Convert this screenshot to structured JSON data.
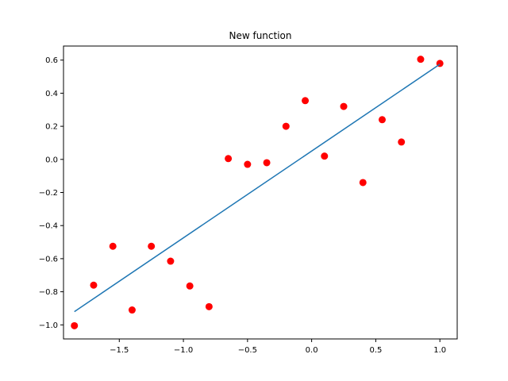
{
  "chart_data": {
    "type": "scatter",
    "title": "New function",
    "xlabel": "",
    "ylabel": "",
    "xlim": [
      -1.935,
      1.135
    ],
    "ylim": [
      -1.085,
      0.685
    ],
    "xticks": [
      -1.5,
      -1.0,
      -0.5,
      0.0,
      0.5,
      1.0
    ],
    "xtick_labels": [
      "−1.5",
      "−1.0",
      "−0.5",
      "0.0",
      "0.5",
      "1.0"
    ],
    "yticks": [
      -1.0,
      -0.8,
      -0.6,
      -0.4,
      -0.2,
      0.0,
      0.2,
      0.4,
      0.6
    ],
    "ytick_labels": [
      "−1.0",
      "−0.8",
      "−0.6",
      "−0.4",
      "−0.2",
      "0.0",
      "0.2",
      "0.4",
      "0.6"
    ],
    "grid": false,
    "series": [
      {
        "kind": "points",
        "color": "#ff0000",
        "x": [
          -1.85,
          -1.7,
          -1.55,
          -1.4,
          -1.25,
          -1.1,
          -0.95,
          -0.8,
          -0.65,
          -0.5,
          -0.35,
          -0.2,
          -0.05,
          0.1,
          0.25,
          0.4,
          0.55,
          0.7,
          0.85,
          1.0
        ],
        "y": [
          -1.005,
          -0.76,
          -0.525,
          -0.91,
          -0.525,
          -0.615,
          -0.765,
          -0.89,
          0.005,
          -0.03,
          -0.02,
          0.2,
          0.355,
          0.02,
          0.32,
          -0.14,
          0.24,
          0.105,
          0.605,
          0.58
        ]
      },
      {
        "kind": "line",
        "color": "#1f77b4",
        "x": [
          -1.85,
          1.0
        ],
        "y": [
          -0.92,
          0.575
        ]
      }
    ]
  }
}
